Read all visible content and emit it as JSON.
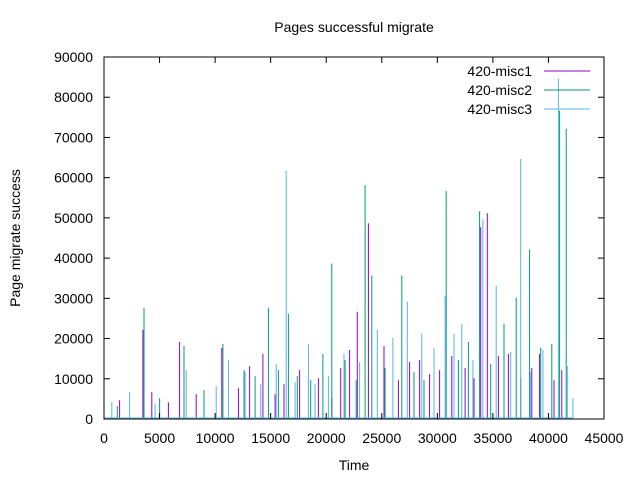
{
  "chart_data": {
    "type": "line",
    "title": "Pages successful migrate",
    "xlabel": "Time",
    "ylabel": "Page migrate success",
    "xlim": [
      0,
      45000
    ],
    "ylim": [
      0,
      90000
    ],
    "xticks": [
      0,
      5000,
      10000,
      15000,
      20000,
      25000,
      30000,
      35000,
      40000,
      45000
    ],
    "yticks": [
      0,
      10000,
      20000,
      30000,
      40000,
      50000,
      60000,
      70000,
      80000,
      90000
    ],
    "grid": false,
    "legend_position": "top-right",
    "series": [
      {
        "name": "420-misc1",
        "color": "#9400d3",
        "points": [
          [
            1400,
            4500
          ],
          [
            3500,
            22000
          ],
          [
            4300,
            6500
          ],
          [
            5800,
            4000
          ],
          [
            6800,
            19000
          ],
          [
            8300,
            6000
          ],
          [
            10600,
            17500
          ],
          [
            12100,
            7500
          ],
          [
            13100,
            13000
          ],
          [
            14300,
            16000
          ],
          [
            15400,
            6000
          ],
          [
            16200,
            8500
          ],
          [
            17600,
            12000
          ],
          [
            19300,
            10000
          ],
          [
            20500,
            5000
          ],
          [
            21300,
            12500
          ],
          [
            22100,
            17000
          ],
          [
            22800,
            26500
          ],
          [
            23800,
            48500
          ],
          [
            25200,
            18000
          ],
          [
            26500,
            9500
          ],
          [
            27500,
            14000
          ],
          [
            28400,
            14500
          ],
          [
            29300,
            11000
          ],
          [
            30200,
            12000
          ],
          [
            31300,
            15500
          ],
          [
            32500,
            12500
          ],
          [
            33300,
            10000
          ],
          [
            33900,
            47500
          ],
          [
            34500,
            51000
          ],
          [
            35500,
            15500
          ],
          [
            36400,
            16000
          ],
          [
            37500,
            10000
          ],
          [
            38500,
            12500
          ],
          [
            39200,
            16000
          ],
          [
            40500,
            9500
          ],
          [
            41200,
            12000
          ]
        ]
      },
      {
        "name": "420-misc2",
        "color": "#009e73",
        "points": [
          [
            1200,
            3000
          ],
          [
            3600,
            27500
          ],
          [
            5000,
            5000
          ],
          [
            7200,
            18000
          ],
          [
            9000,
            7000
          ],
          [
            10700,
            18500
          ],
          [
            12600,
            12000
          ],
          [
            13600,
            10500
          ],
          [
            14800,
            27500
          ],
          [
            15700,
            12000
          ],
          [
            16600,
            26000
          ],
          [
            17400,
            10500
          ],
          [
            18600,
            9500
          ],
          [
            19700,
            16000
          ],
          [
            20500,
            38500
          ],
          [
            21700,
            14500
          ],
          [
            22700,
            9500
          ],
          [
            23500,
            58000
          ],
          [
            24100,
            35500
          ],
          [
            25300,
            12500
          ],
          [
            26800,
            35500
          ],
          [
            27900,
            11500
          ],
          [
            28800,
            9500
          ],
          [
            29700,
            14500
          ],
          [
            30800,
            56500
          ],
          [
            31900,
            14500
          ],
          [
            32800,
            19000
          ],
          [
            33800,
            51500
          ],
          [
            34800,
            13500
          ],
          [
            36000,
            23500
          ],
          [
            37100,
            30000
          ],
          [
            38300,
            42000
          ],
          [
            39300,
            17500
          ],
          [
            40300,
            18500
          ],
          [
            41000,
            76500
          ],
          [
            41600,
            72000
          ]
        ]
      },
      {
        "name": "420-misc3",
        "color": "#56b4e9",
        "points": [
          [
            700,
            4000
          ],
          [
            2300,
            6500
          ],
          [
            4600,
            3500
          ],
          [
            7400,
            12000
          ],
          [
            10100,
            8000
          ],
          [
            11200,
            14500
          ],
          [
            12700,
            11500
          ],
          [
            14100,
            8500
          ],
          [
            15500,
            13500
          ],
          [
            16400,
            61500
          ],
          [
            17200,
            9000
          ],
          [
            18400,
            18500
          ],
          [
            19000,
            8500
          ],
          [
            20200,
            10500
          ],
          [
            21600,
            16000
          ],
          [
            23000,
            14000
          ],
          [
            24600,
            22000
          ],
          [
            26000,
            20000
          ],
          [
            27300,
            29000
          ],
          [
            28600,
            21000
          ],
          [
            29700,
            17500
          ],
          [
            30700,
            30500
          ],
          [
            31500,
            21000
          ],
          [
            32200,
            23500
          ],
          [
            33200,
            14500
          ],
          [
            34100,
            49500
          ],
          [
            35300,
            33000
          ],
          [
            36600,
            16500
          ],
          [
            37500,
            64500
          ],
          [
            38400,
            11500
          ],
          [
            39500,
            17000
          ],
          [
            40900,
            84500
          ],
          [
            41700,
            13000
          ],
          [
            42200,
            5000
          ]
        ]
      }
    ]
  }
}
